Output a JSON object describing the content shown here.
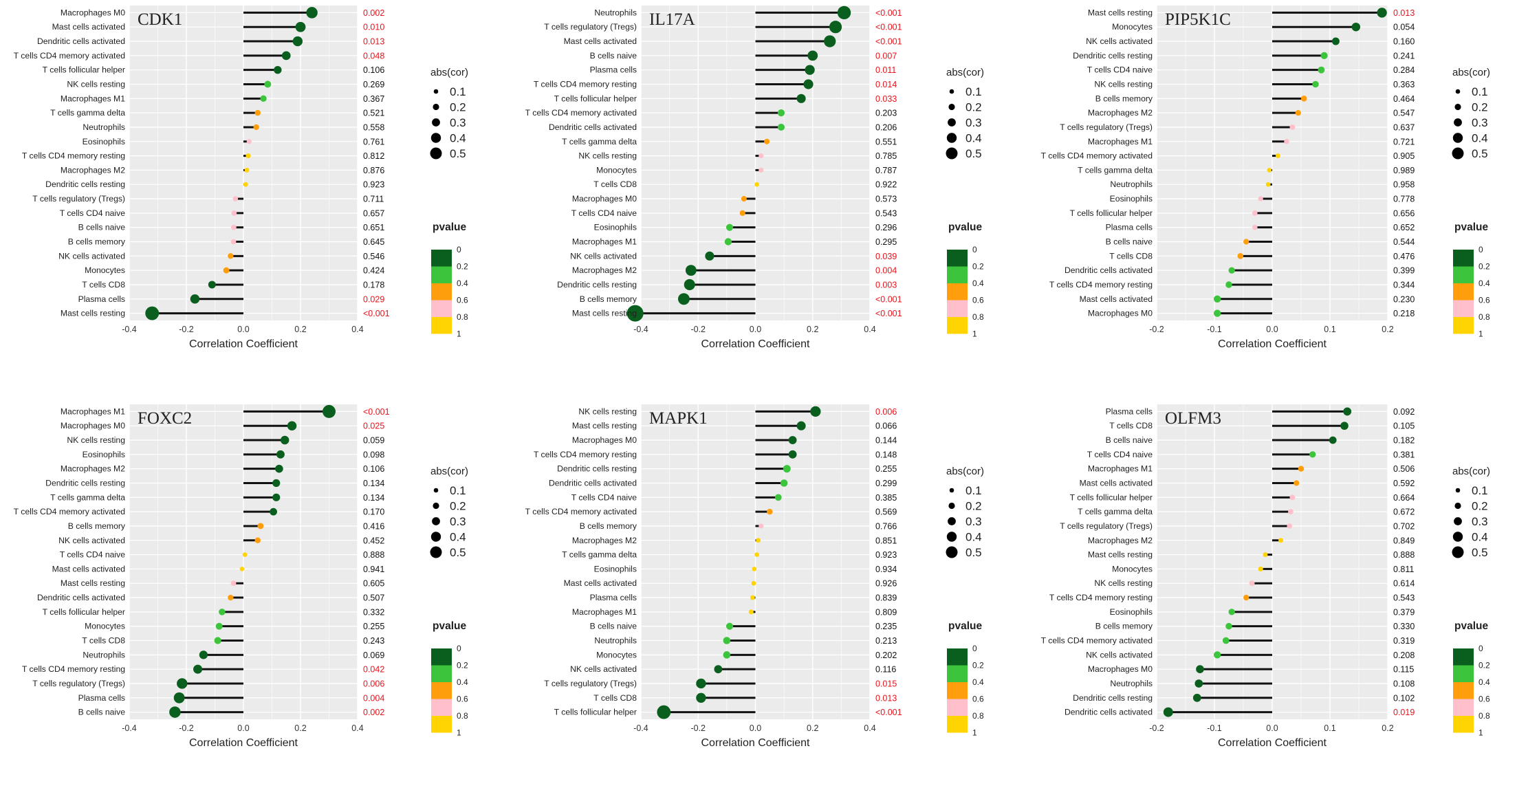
{
  "figure": {
    "legend": {
      "size_title": "abs(cor)",
      "size_levels": [
        "0.1",
        "0.2",
        "0.3",
        "0.4",
        "0.5"
      ],
      "color_title": "pvalue",
      "color_levels": [
        "0",
        "0.2",
        "0.4",
        "0.6",
        "0.8",
        "1"
      ],
      "color_bins": [
        "#0a5f1e",
        "#3cc43c",
        "#ff9e0c",
        "#ffc0cb",
        "#ffd400"
      ]
    },
    "colors": {
      "panel_bg": "#ebebeb",
      "gridline": "#ffffff",
      "stem": "#111111",
      "sig_pvalue": "#e8121b",
      "nonsig_pvalue": "#111111"
    }
  },
  "chart_data": [
    {
      "type": "lollipop",
      "gene": "CDK1",
      "xlabel": "Correlation Coefficient",
      "xlim": [
        -0.4,
        0.4
      ],
      "xticks": [
        "-0.4",
        "-0.2",
        "0.0",
        "0.2",
        "0.4"
      ],
      "cells": [
        "Macrophages M0",
        "Mast cells activated",
        "Dendritic cells activated",
        "T cells CD4 memory activated",
        "T cells follicular helper",
        "NK cells resting",
        "Macrophages M1",
        "T cells gamma delta",
        "Neutrophils",
        "Eosinophils",
        "T cells CD4 memory resting",
        "Macrophages M2",
        "Dendritic cells resting",
        "T cells regulatory (Tregs)",
        "T cells CD4 naive",
        "B cells naive",
        "B cells memory",
        "NK cells activated",
        "Monocytes",
        "T cells CD8",
        "Plasma cells",
        "Mast cells resting"
      ],
      "cor": [
        0.24,
        0.2,
        0.19,
        0.15,
        0.12,
        0.085,
        0.07,
        0.05,
        0.045,
        0.02,
        0.017,
        0.012,
        0.008,
        -0.028,
        -0.033,
        -0.034,
        -0.035,
        -0.045,
        -0.06,
        -0.11,
        -0.17,
        -0.32
      ],
      "pvalue_labels": [
        "0.002",
        "0.010",
        "0.013",
        "0.048",
        "0.106",
        "0.269",
        "0.367",
        "0.521",
        "0.558",
        "0.761",
        "0.812",
        "0.876",
        "0.923",
        "0.711",
        "0.657",
        "0.651",
        "0.645",
        "0.546",
        "0.424",
        "0.178",
        "0.029",
        "<0.001"
      ]
    },
    {
      "type": "lollipop",
      "gene": "IL17A",
      "xlabel": "Correlation Coefficient",
      "xlim": [
        -0.4,
        0.4
      ],
      "xticks": [
        "-0.4",
        "-0.2",
        "0.0",
        "0.2",
        "0.4"
      ],
      "cells": [
        "Neutrophils",
        "T cells regulatory (Tregs)",
        "Mast cells activated",
        "B cells naive",
        "Plasma cells",
        "T cells CD4 memory resting",
        "T cells follicular helper",
        "T cells CD4 memory activated",
        "Dendritic cells activated",
        "T cells gamma delta",
        "NK cells resting",
        "Monocytes",
        "T cells CD8",
        "Macrophages M0",
        "T cells CD4 naive",
        "Eosinophils",
        "Macrophages M1",
        "NK cells activated",
        "Macrophages M2",
        "Dendritic cells resting",
        "B cells memory",
        "Mast cells resting"
      ],
      "cor": [
        0.31,
        0.28,
        0.26,
        0.2,
        0.19,
        0.185,
        0.16,
        0.09,
        0.09,
        0.04,
        0.02,
        0.02,
        0.005,
        -0.04,
        -0.045,
        -0.09,
        -0.095,
        -0.16,
        -0.225,
        -0.23,
        -0.25,
        -0.42
      ],
      "pvalue_labels": [
        "<0.001",
        "<0.001",
        "<0.001",
        "0.007",
        "0.011",
        "0.014",
        "0.033",
        "0.203",
        "0.206",
        "0.551",
        "0.785",
        "0.787",
        "0.922",
        "0.573",
        "0.543",
        "0.296",
        "0.295",
        "0.039",
        "0.004",
        "0.003",
        "<0.001",
        "<0.001"
      ]
    },
    {
      "type": "lollipop",
      "gene": "PIP5K1C",
      "xlabel": "Correlation Coefficient",
      "xlim": [
        -0.2,
        0.2
      ],
      "xticks": [
        "-0.2",
        "-0.1",
        "0.0",
        "0.1",
        "0.2"
      ],
      "cells": [
        "Mast cells resting",
        "Monocytes",
        "NK cells activated",
        "Dendritic cells resting",
        "T cells CD4 naive",
        "NK cells resting",
        "B cells memory",
        "Macrophages M2",
        "T cells regulatory (Tregs)",
        "Macrophages M1",
        "T cells CD4 memory activated",
        "T cells gamma delta",
        "Neutrophils",
        "Eosinophils",
        "T cells follicular helper",
        "Plasma cells",
        "B cells naive",
        "T cells CD8",
        "Dendritic cells activated",
        "T cells CD4 memory resting",
        "Mast cells activated",
        "Macrophages M0"
      ],
      "cor": [
        0.19,
        0.145,
        0.11,
        0.09,
        0.085,
        0.075,
        0.055,
        0.045,
        0.035,
        0.025,
        0.01,
        -0.005,
        -0.007,
        -0.02,
        -0.03,
        -0.03,
        -0.045,
        -0.055,
        -0.07,
        -0.075,
        -0.095,
        -0.095
      ],
      "pvalue_labels": [
        "0.013",
        "0.054",
        "0.160",
        "0.241",
        "0.284",
        "0.363",
        "0.464",
        "0.547",
        "0.637",
        "0.721",
        "0.905",
        "0.989",
        "0.958",
        "0.778",
        "0.656",
        "0.652",
        "0.544",
        "0.476",
        "0.399",
        "0.344",
        "0.230",
        "0.218"
      ]
    },
    {
      "type": "lollipop",
      "gene": "FOXC2",
      "xlabel": "Correlation Coefficient",
      "xlim": [
        -0.4,
        0.4
      ],
      "xticks": [
        "-0.4",
        "-0.2",
        "0.0",
        "0.2",
        "0.4"
      ],
      "cells": [
        "Macrophages M1",
        "Macrophages M0",
        "NK cells resting",
        "Eosinophils",
        "Macrophages M2",
        "Dendritic cells resting",
        "T cells gamma delta",
        "T cells CD4 memory activated",
        "B cells memory",
        "NK cells activated",
        "T cells CD4 naive",
        "Mast cells activated",
        "Mast cells resting",
        "Dendritic cells activated",
        "T cells follicular helper",
        "Monocytes",
        "T cells CD8",
        "Neutrophils",
        "T cells CD4 memory resting",
        "T cells regulatory (Tregs)",
        "Plasma cells",
        "B cells naive"
      ],
      "cor": [
        0.3,
        0.17,
        0.145,
        0.13,
        0.125,
        0.115,
        0.115,
        0.105,
        0.06,
        0.05,
        0.005,
        -0.005,
        -0.035,
        -0.045,
        -0.075,
        -0.085,
        -0.09,
        -0.14,
        -0.16,
        -0.215,
        -0.225,
        -0.24
      ],
      "pvalue_labels": [
        "<0.001",
        "0.025",
        "0.059",
        "0.098",
        "0.106",
        "0.134",
        "0.134",
        "0.170",
        "0.416",
        "0.452",
        "0.888",
        "0.941",
        "0.605",
        "0.507",
        "0.332",
        "0.255",
        "0.243",
        "0.069",
        "0.042",
        "0.006",
        "0.004",
        "0.002"
      ]
    },
    {
      "type": "lollipop",
      "gene": "MAPK1",
      "xlabel": "Correlation Coefficient",
      "xlim": [
        -0.4,
        0.4
      ],
      "xticks": [
        "-0.4",
        "-0.2",
        "0.0",
        "0.2",
        "0.4"
      ],
      "cells": [
        "NK cells resting",
        "Mast cells resting",
        "Macrophages M0",
        "T cells CD4 memory resting",
        "Dendritic cells resting",
        "Dendritic cells activated",
        "T cells CD4 naive",
        "T cells CD4 memory activated",
        "B cells memory",
        "Macrophages M2",
        "T cells gamma delta",
        "Eosinophils",
        "Mast cells activated",
        "Plasma cells",
        "Macrophages M1",
        "B cells naive",
        "Neutrophils",
        "Monocytes",
        "NK cells activated",
        "T cells regulatory (Tregs)",
        "T cells CD8",
        "T cells follicular helper"
      ],
      "cor": [
        0.21,
        0.16,
        0.13,
        0.13,
        0.11,
        0.1,
        0.08,
        0.05,
        0.02,
        0.01,
        0.005,
        -0.004,
        -0.006,
        -0.01,
        -0.015,
        -0.09,
        -0.1,
        -0.1,
        -0.13,
        -0.19,
        -0.19,
        -0.32
      ],
      "pvalue_labels": [
        "0.006",
        "0.066",
        "0.144",
        "0.148",
        "0.255",
        "0.299",
        "0.385",
        "0.569",
        "0.766",
        "0.851",
        "0.923",
        "0.934",
        "0.926",
        "0.839",
        "0.809",
        "0.235",
        "0.213",
        "0.202",
        "0.116",
        "0.015",
        "0.013",
        "<0.001"
      ]
    },
    {
      "type": "lollipop",
      "gene": "OLFM3",
      "xlabel": "Correlation Coefficient",
      "xlim": [
        -0.2,
        0.2
      ],
      "xticks": [
        "-0.2",
        "-0.1",
        "0.0",
        "0.1",
        "0.2"
      ],
      "cells": [
        "Plasma cells",
        "T cells CD8",
        "B cells naive",
        "T cells CD4 naive",
        "Macrophages M1",
        "Mast cells activated",
        "T cells follicular helper",
        "T cells gamma delta",
        "T cells regulatory (Tregs)",
        "Macrophages M2",
        "Mast cells resting",
        "Monocytes",
        "NK cells resting",
        "T cells CD4 memory resting",
        "Eosinophils",
        "B cells memory",
        "T cells CD4 memory activated",
        "NK cells activated",
        "Macrophages M0",
        "Neutrophils",
        "Dendritic cells resting",
        "Dendritic cells activated"
      ],
      "cor": [
        0.13,
        0.125,
        0.105,
        0.07,
        0.05,
        0.042,
        0.035,
        0.032,
        0.03,
        0.015,
        -0.012,
        -0.02,
        -0.035,
        -0.045,
        -0.07,
        -0.075,
        -0.08,
        -0.095,
        -0.125,
        -0.127,
        -0.13,
        -0.18
      ],
      "pvalue_labels": [
        "0.092",
        "0.105",
        "0.182",
        "0.381",
        "0.506",
        "0.592",
        "0.664",
        "0.672",
        "0.702",
        "0.849",
        "0.888",
        "0.811",
        "0.614",
        "0.543",
        "0.379",
        "0.330",
        "0.319",
        "0.208",
        "0.115",
        "0.108",
        "0.102",
        "0.019"
      ]
    }
  ]
}
